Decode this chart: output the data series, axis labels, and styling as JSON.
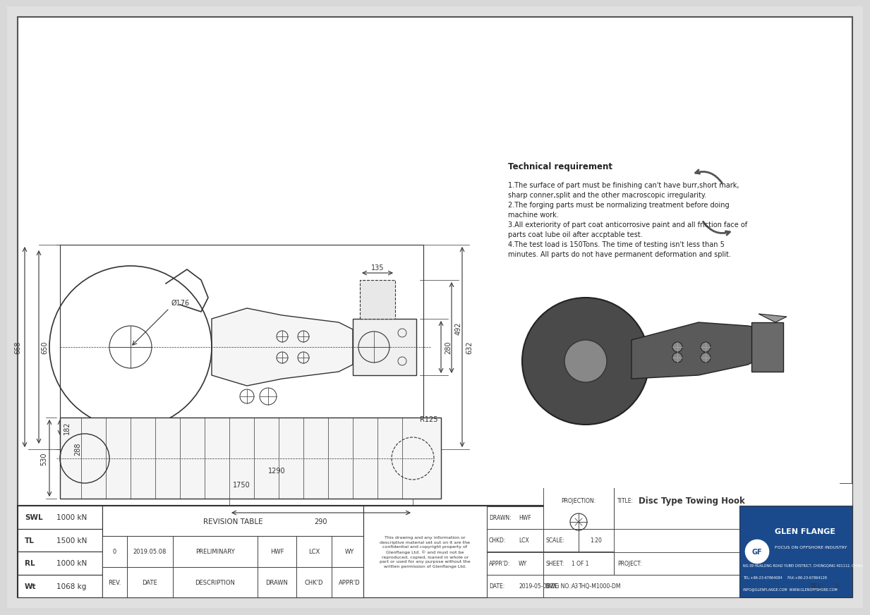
{
  "bg_color": "#e8e8e8",
  "drawing_bg": "#f0f0f0",
  "line_color": "#333333",
  "dim_color": "#222222",
  "title": "Disc Type Towing Hook",
  "tech_req_title": "Technical requirement",
  "tech_req_lines": [
    "1.The surface of part must be finishing can't have burr,short mark,",
    "sharp conner,split and the other macroscopic irregularity.",
    "2.The forging parts must be normalizing treatment before doing",
    "machine work.",
    "3.All exteriority of part coat anticorrosive paint and all friction face of",
    "parts coat lube oil after accptable test.",
    "4.The test load is 150Tons. The time of testing isn't less than 5",
    "minutes. All parts do not have permanent deformation and split."
  ],
  "swl": "1000 kN",
  "tl": "1500 kN",
  "rl": "1000 kN",
  "wt": "1068 kg",
  "drawn_by": "HWF",
  "chkd_by": "LCX",
  "apprd_by": "WY",
  "date": "2019-05-08",
  "scale": "1:20",
  "sheet": "1 OF 1",
  "size": "A3",
  "dwg_no": "THQ-M1000-DM",
  "rev": "0",
  "project": "",
  "rev_date": "2019.05.08",
  "rev_desc": "PRELIMINARY",
  "rev_drawn": "HWF",
  "rev_chkd": "LCX",
  "rev_apprd": "WY",
  "company": "GLEN FLANGE",
  "company_sub": "FOCUS ON OFFSHORE INDUSTRY",
  "company_addr": "NO.39 HUALONG ROAD YUBEI DISTRICT, CHONGQING 401112, CHINA",
  "company_tel": "TEL:+86-23-67864084     FAX:+86-23-67864128",
  "company_email": "INFO@GLENFLANGE.COM  WWW.GLENOFFSHORE.COM",
  "top_dims": {
    "width_135": "135",
    "height_280": "280",
    "height_492": "492",
    "height_632": "632",
    "height_668": "668",
    "height_650": "650",
    "dia_176": "Ø176",
    "length_1290": "1290",
    "length_1750": "1750"
  },
  "bottom_dims": {
    "height_182": "182",
    "height_288": "288",
    "height_530": "530",
    "length_290": "290",
    "radius_125": "R125"
  }
}
